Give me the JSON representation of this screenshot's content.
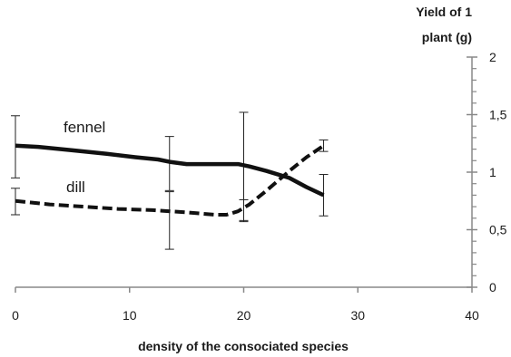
{
  "chart_data": {
    "type": "line",
    "title": "",
    "xlabel": "density of the consociated  species",
    "ylabel_lines": [
      "Yield of 1",
      "plant (g)"
    ],
    "xlim": [
      0,
      40
    ],
    "ylim": [
      0,
      2
    ],
    "x_ticks": [
      0,
      10,
      20,
      30,
      40
    ],
    "x_tick_labels": [
      "0",
      "10",
      "20",
      "30",
      "40"
    ],
    "y_ticks": [
      0,
      0.5,
      1,
      1.5,
      2
    ],
    "y_tick_labels": [
      "0",
      "0,5",
      "1",
      "1,5",
      "2"
    ],
    "y_axis_position": "right",
    "grid": false,
    "series": [
      {
        "name": "fennel",
        "line_style": "solid",
        "color": "#111111",
        "points": [
          [
            0,
            1.23
          ],
          [
            2,
            1.22
          ],
          [
            5,
            1.19
          ],
          [
            8,
            1.16
          ],
          [
            10.5,
            1.13
          ],
          [
            12.5,
            1.11
          ],
          [
            13.5,
            1.09
          ],
          [
            15,
            1.07
          ],
          [
            17.5,
            1.07
          ],
          [
            19.5,
            1.07
          ],
          [
            20.5,
            1.05
          ],
          [
            22,
            1.01
          ],
          [
            24,
            0.95
          ],
          [
            25.5,
            0.87
          ],
          [
            27,
            0.8
          ]
        ],
        "error_bars": [
          {
            "x": 0,
            "low": 0.95,
            "high": 1.49
          },
          {
            "x": 13.5,
            "low": 0.84,
            "high": 1.31
          },
          {
            "x": 20,
            "low": 0.58,
            "high": 1.52
          },
          {
            "x": 27,
            "low": 0.62,
            "high": 0.98
          }
        ]
      },
      {
        "name": "dill",
        "line_style": "dashed",
        "color": "#111111",
        "points": [
          [
            0,
            0.75
          ],
          [
            3,
            0.72
          ],
          [
            6,
            0.7
          ],
          [
            9,
            0.68
          ],
          [
            12,
            0.67
          ],
          [
            15,
            0.65
          ],
          [
            17.5,
            0.63
          ],
          [
            18.5,
            0.63
          ],
          [
            19.5,
            0.66
          ],
          [
            20.5,
            0.72
          ],
          [
            22,
            0.84
          ],
          [
            24,
            1.01
          ],
          [
            25.5,
            1.13
          ],
          [
            27,
            1.23
          ]
        ],
        "error_bars": [
          {
            "x": 0,
            "low": 0.63,
            "high": 0.86
          },
          {
            "x": 13.5,
            "low": 0.33,
            "high": 0.83
          },
          {
            "x": 20,
            "low": 0.57,
            "high": 0.76
          },
          {
            "x": 27,
            "low": 1.18,
            "high": 1.28
          }
        ]
      }
    ]
  }
}
